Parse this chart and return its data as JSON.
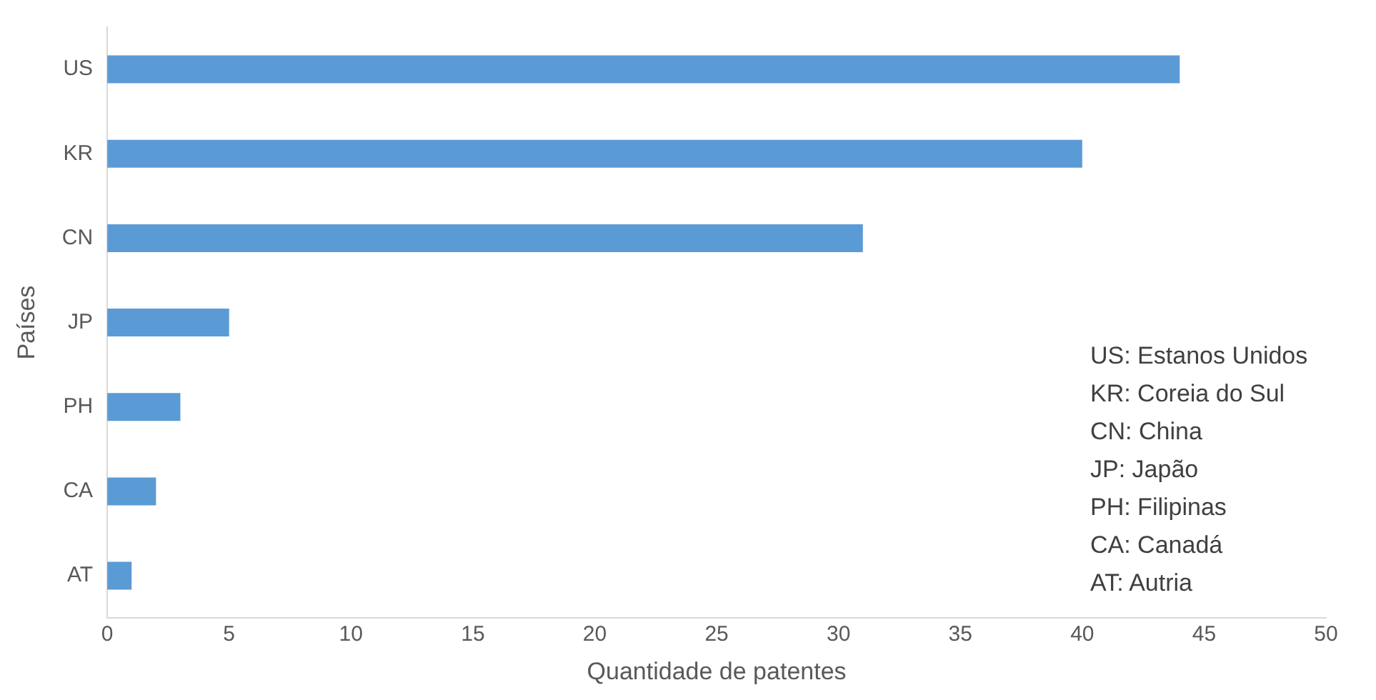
{
  "chart_data": {
    "type": "bar",
    "orientation": "horizontal",
    "xlabel": "Quantidade de patentes",
    "ylabel": "Países",
    "categories": [
      "US",
      "KR",
      "CN",
      "JP",
      "PH",
      "CA",
      "AT"
    ],
    "values": [
      44,
      40,
      31,
      5,
      3,
      2,
      1
    ],
    "color": "#5b9bd5",
    "xlim": [
      0,
      50
    ],
    "xticks": [
      0,
      5,
      10,
      15,
      20,
      25,
      30,
      35,
      40,
      45,
      50
    ],
    "grid": false,
    "annotations": [
      "US: Estanos Unidos",
      "KR: Coreia do Sul",
      "CN: China",
      "JP: Japão",
      "PH: Filipinas",
      "CA: Canadá",
      "AT: Autria"
    ]
  }
}
